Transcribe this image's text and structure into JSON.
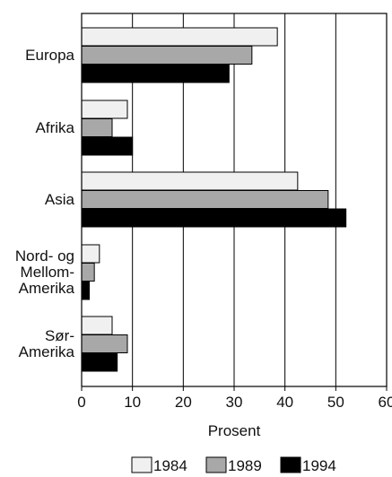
{
  "chart_data": {
    "type": "bar",
    "orientation": "horizontal",
    "categories": [
      [
        "Europa"
      ],
      [
        "Afrika"
      ],
      [
        "Asia"
      ],
      [
        "Nord- og",
        "Mellom-",
        "Amerika"
      ],
      [
        "Sør-",
        "Amerika"
      ]
    ],
    "series": [
      {
        "name": "1984",
        "values": [
          38.5,
          9,
          42.5,
          3.5,
          6
        ],
        "color": "#f0f0f0"
      },
      {
        "name": "1989",
        "values": [
          33.5,
          6,
          48.5,
          2.5,
          9
        ],
        "color": "#a8a8a8"
      },
      {
        "name": "1994",
        "values": [
          29,
          10,
          52,
          1.5,
          7
        ],
        "color": "#000000"
      }
    ],
    "xlabel": "Prosent",
    "ylabel": "",
    "xlim": [
      0,
      60
    ],
    "xticks": [
      0,
      10,
      20,
      30,
      40,
      50,
      60
    ],
    "grid": true,
    "legend_position": "bottom"
  }
}
